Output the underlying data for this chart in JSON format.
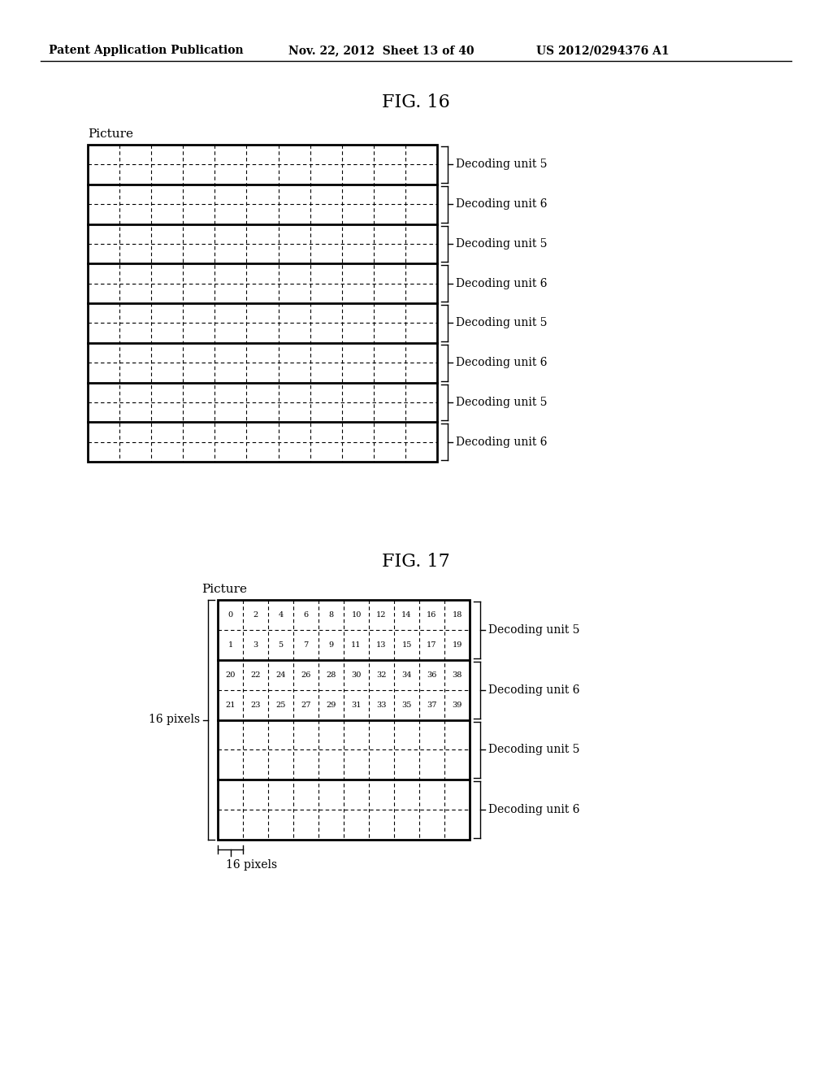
{
  "header_left": "Patent Application Publication",
  "header_mid": "Nov. 22, 2012  Sheet 13 of 40",
  "header_right": "US 2012/0294376 A1",
  "fig16_title": "FIG. 16",
  "fig17_title": "FIG. 17",
  "fig16_picture_label": "Picture",
  "fig17_picture_label": "Picture",
  "fig16_labels": [
    "Decoding unit 5",
    "Decoding unit 6",
    "Decoding unit 5",
    "Decoding unit 6",
    "Decoding unit 5",
    "Decoding unit 6",
    "Decoding unit 5",
    "Decoding unit 6"
  ],
  "fig17_labels": [
    "Decoding unit 5",
    "Decoding unit 6",
    "Decoding unit 5",
    "Decoding unit 6"
  ],
  "fig17_row0": [
    "0",
    "2",
    "4",
    "6",
    "8",
    "10",
    "12",
    "14",
    "16",
    "18"
  ],
  "fig17_row1": [
    "1",
    "3",
    "5",
    "7",
    "9",
    "11",
    "13",
    "15",
    "17",
    "19"
  ],
  "fig17_row2": [
    "20",
    "22",
    "24",
    "26",
    "28",
    "30",
    "32",
    "34",
    "36",
    "38"
  ],
  "fig17_row3": [
    "21",
    "23",
    "25",
    "27",
    "29",
    "31",
    "33",
    "35",
    "37",
    "39"
  ],
  "fig17_pixels_label": "16 pixels",
  "bg_color": "#ffffff",
  "line_color": "#000000"
}
